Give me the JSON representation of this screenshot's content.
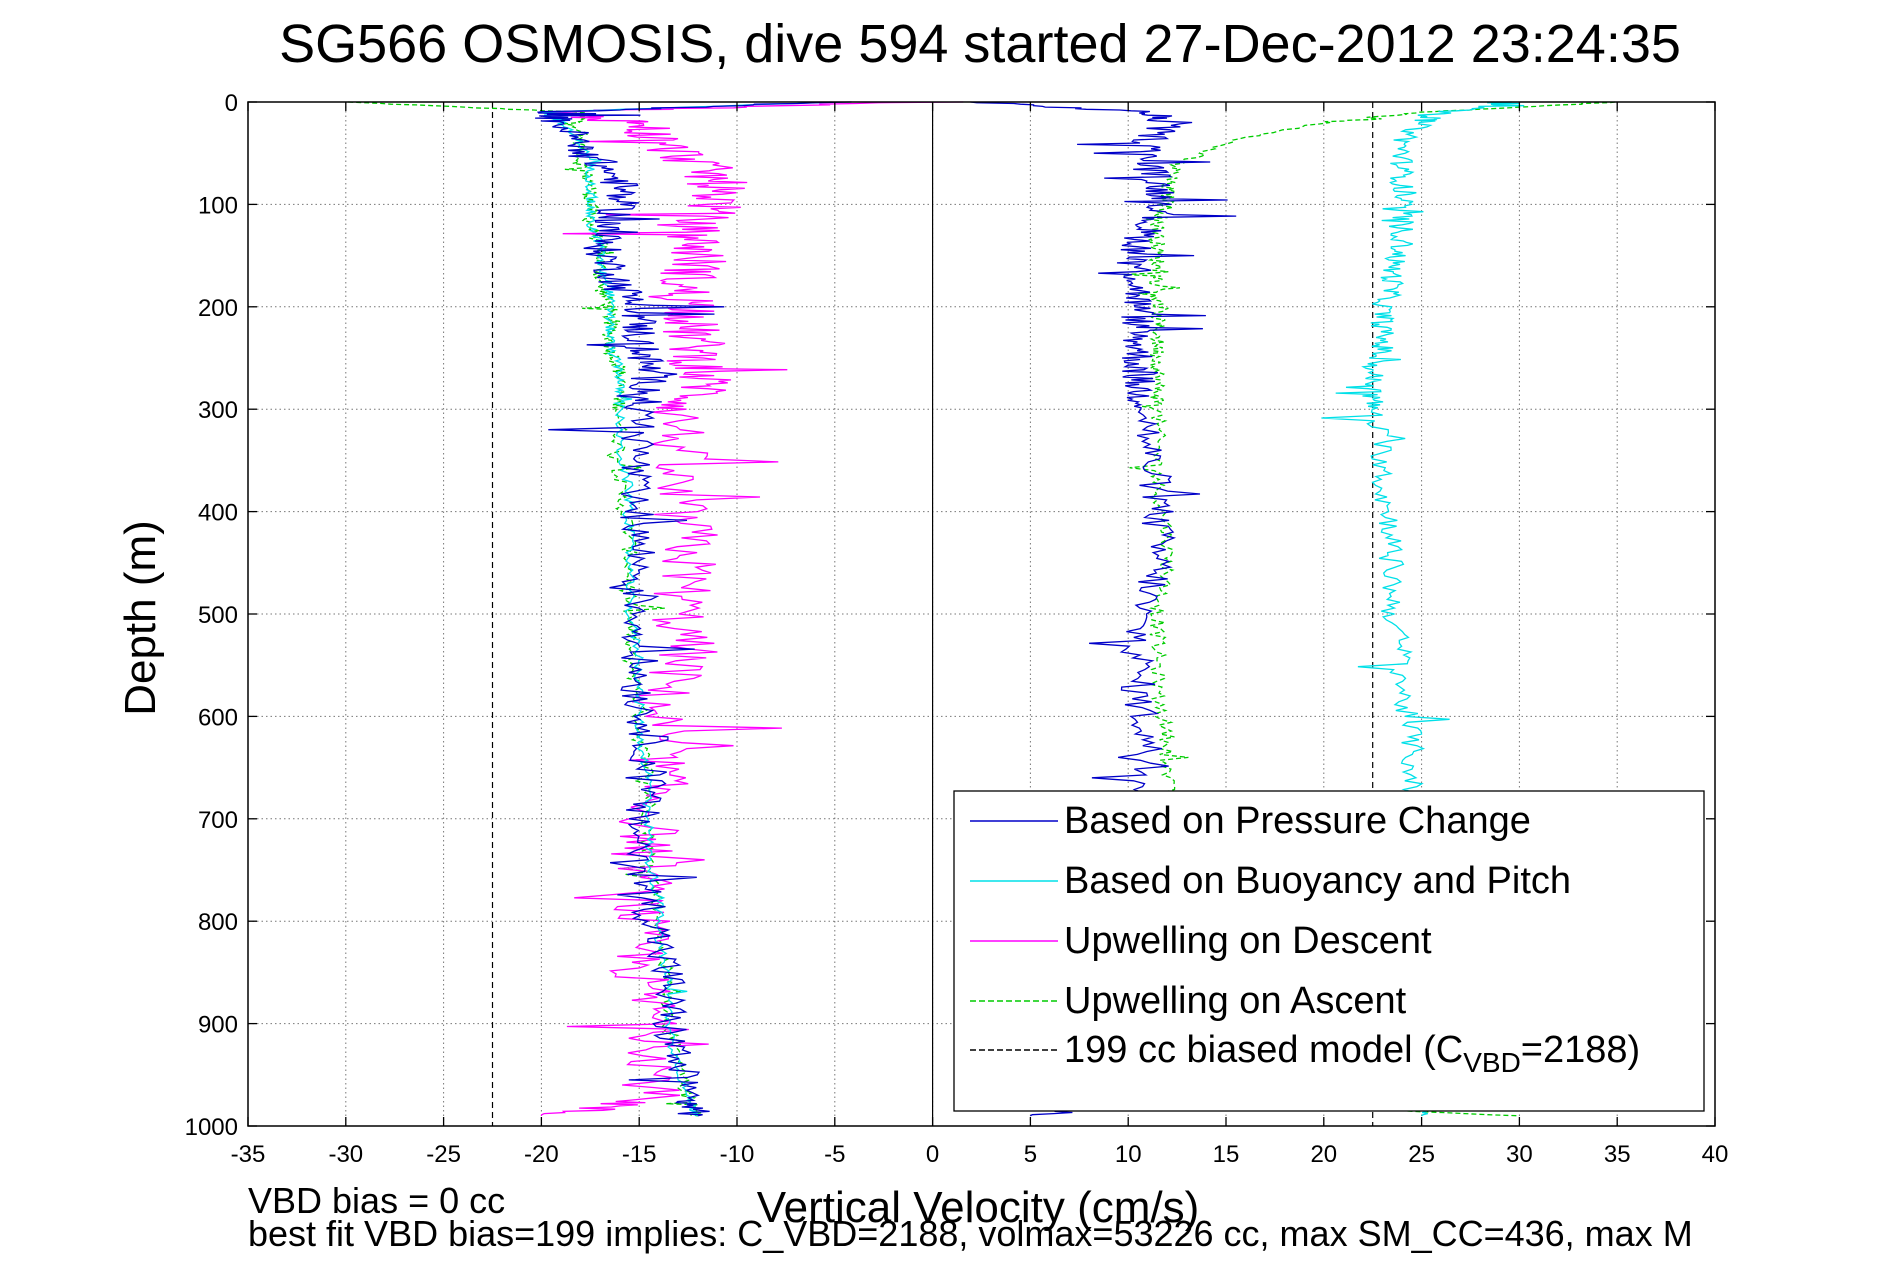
{
  "chart_data": {
    "type": "line",
    "title": "SG566 OSMOSIS, dive 594 started 27-Dec-2012 23:24:35",
    "xlabel": "Vertical Velocity (cm/s)",
    "ylabel": "Depth (m)",
    "xlim": [
      -35,
      40
    ],
    "ylim": [
      0,
      1000
    ],
    "y_reversed": true,
    "grid": true,
    "legend_position": "lower-right",
    "xticks": [
      -35,
      -30,
      -25,
      -20,
      -15,
      -10,
      -5,
      0,
      5,
      10,
      15,
      20,
      25,
      30,
      35,
      40
    ],
    "yticks": [
      0,
      100,
      200,
      300,
      400,
      500,
      600,
      700,
      800,
      900,
      1000
    ],
    "xtick_labels": [
      "-35",
      "-30",
      "-25",
      "-20",
      "-15",
      "-10",
      "-5",
      "0",
      "5",
      "10",
      "15",
      "20",
      "25",
      "30",
      "35",
      "40"
    ],
    "ytick_labels": [
      "0",
      "100",
      "200",
      "300",
      "400",
      "500",
      "600",
      "700",
      "800",
      "900",
      "1000"
    ],
    "series": [
      {
        "name": "Based on Pressure Change",
        "color": "#0000c8",
        "dash": "solid",
        "depth": [
          0,
          10,
          20,
          40,
          60,
          80,
          100,
          120,
          140,
          160,
          180,
          200,
          220,
          240,
          260,
          280,
          300,
          340,
          380,
          420,
          460,
          500,
          540,
          580,
          620,
          660,
          700,
          740,
          780,
          820,
          860,
          900,
          940,
          975,
          990
        ],
        "descent_velocity": [
          -5,
          -20,
          -19,
          -18,
          -17,
          -16,
          -16,
          -16.5,
          -17,
          -16.5,
          -16,
          -15,
          -15,
          -15,
          -14.5,
          -14.5,
          -15,
          -15,
          -15.5,
          -15,
          -15,
          -15,
          -15,
          -15,
          -14.5,
          -14.5,
          -15,
          -15,
          -14.5,
          -14,
          -13.5,
          -13.5,
          -13,
          -12.5,
          -12
        ],
        "ascent_velocity": [
          2,
          11,
          12,
          11,
          11,
          11.5,
          12,
          11,
          10.5,
          10.5,
          10.5,
          10.5,
          10.5,
          10.5,
          10.5,
          10.5,
          11,
          11,
          11.5,
          11.5,
          11.5,
          10.5,
          10.5,
          10.5,
          11,
          11,
          11,
          11,
          11,
          11,
          11,
          11,
          11,
          11,
          5
        ]
      },
      {
        "name": "Based on Buoyancy and Pitch",
        "color": "#00e0e8",
        "dash": "solid",
        "depth": [
          0,
          10,
          20,
          40,
          60,
          80,
          100,
          120,
          140,
          160,
          180,
          200,
          220,
          240,
          260,
          280,
          300,
          340,
          380,
          420,
          460,
          500,
          540,
          580,
          620,
          660,
          700,
          740,
          780,
          820,
          860,
          900,
          940,
          975,
          990
        ],
        "descent_velocity": [
          -5,
          -20,
          -19,
          -18,
          -17.5,
          -17.5,
          -17.5,
          -17.5,
          -17,
          -17,
          -16.5,
          -16.5,
          -16.5,
          -16.5,
          -16,
          -16,
          -16,
          -16,
          -15.5,
          -15.5,
          -15.5,
          -15.5,
          -15,
          -15,
          -15,
          -14.5,
          -14.5,
          -14.5,
          -14,
          -14,
          -13.5,
          -13.5,
          -13,
          -12.5,
          -12
        ],
        "ascent_velocity": [
          30,
          26,
          25,
          24,
          24,
          24,
          24,
          24,
          24,
          23.5,
          23.5,
          23,
          23,
          23,
          22.5,
          22.5,
          22.5,
          23,
          23,
          23.5,
          23.5,
          23.5,
          24,
          24,
          24.5,
          24.5,
          24.5,
          25,
          25,
          25,
          25,
          25,
          25,
          25,
          25
        ]
      },
      {
        "name": "Upwelling on Descent",
        "color": "#ff00ff",
        "dash": "solid",
        "depth": [
          0,
          10,
          20,
          40,
          60,
          80,
          100,
          120,
          140,
          160,
          180,
          200,
          220,
          240,
          260,
          280,
          300,
          340,
          380,
          420,
          460,
          500,
          540,
          580,
          620,
          660,
          700,
          740,
          780,
          820,
          860,
          900,
          940,
          975,
          990
        ],
        "velocity": [
          0,
          -20,
          -15,
          -14,
          -12,
          -11,
          -11,
          -12.5,
          -12,
          -12,
          -13,
          -12,
          -12.5,
          -12,
          -12,
          -11.5,
          -13,
          -13,
          -13.5,
          -12.5,
          -12.5,
          -13,
          -12.5,
          -14,
          -14,
          -14,
          -14.5,
          -14.5,
          -15,
          -15,
          -15,
          -14,
          -14,
          -14.5,
          -20
        ]
      },
      {
        "name": "Upwelling on Ascent",
        "color": "#00cc00",
        "dash": "dashed",
        "depth": [
          0,
          10,
          20,
          40,
          60,
          80,
          100,
          120,
          140,
          160,
          180,
          200,
          220,
          240,
          260,
          280,
          300,
          340,
          380,
          420,
          460,
          500,
          540,
          580,
          620,
          660,
          700,
          740,
          780,
          820,
          860,
          900,
          940,
          975,
          990
        ],
        "descent_velocity": [
          -30,
          -18,
          -18,
          -18,
          -18,
          -17.5,
          -17.5,
          -17.5,
          -17,
          -17,
          -17,
          -16.5,
          -16.5,
          -16.5,
          -16,
          -16,
          -16,
          -16,
          -16,
          -15.5,
          -15.5,
          -15.5,
          -15.5,
          -15,
          -15,
          -14.5,
          -14.5,
          -14.5,
          -14,
          -14,
          -13.5,
          -13.5,
          -13,
          -12.5,
          -12
        ],
        "ascent_velocity": [
          35,
          25,
          20,
          15,
          12.5,
          12,
          12,
          11.5,
          11.5,
          11.5,
          11.5,
          11.5,
          11.5,
          11.5,
          11.5,
          11.5,
          11.5,
          11.5,
          11.5,
          12,
          12,
          11.5,
          11.5,
          11.5,
          12,
          12,
          12,
          12,
          12,
          12,
          12,
          12,
          12,
          12,
          30
        ]
      },
      {
        "name": "199 cc biased model (C",
        "name_sub": "VBD",
        "name_suffix": "=2188)",
        "color": "#000000",
        "dash": "dashed",
        "lines_x": [
          -22.5,
          22.5
        ],
        "lines_y": [
          0,
          1000
        ]
      }
    ],
    "annotations": [
      "VBD bias = 0 cc",
      "best fit VBD bias=199 implies: C_VBD=2188, volmax=53226 cc, max SM_CC=436, max M"
    ]
  }
}
